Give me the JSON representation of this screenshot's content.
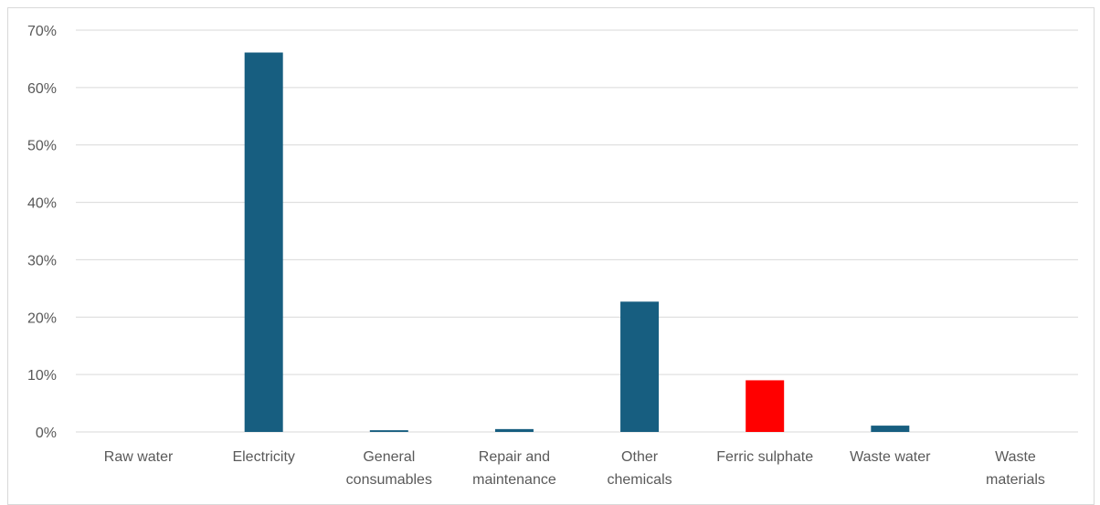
{
  "chart_data": {
    "type": "bar",
    "title": "",
    "xlabel": "",
    "ylabel": "",
    "ylim": [
      0,
      70
    ],
    "y_tick_step": 10,
    "y_tick_suffix": "%",
    "grid": true,
    "legend": "none",
    "categories": [
      [
        "Raw water"
      ],
      [
        "Electricity"
      ],
      [
        "General",
        "consumables"
      ],
      [
        "Repair and",
        "maintenance"
      ],
      [
        "Other",
        "chemicals"
      ],
      [
        "Ferric sulphate"
      ],
      [
        "Waste water"
      ],
      [
        "Waste",
        "materials"
      ]
    ],
    "values": [
      0.0,
      66.1,
      0.3,
      0.5,
      22.7,
      9.0,
      1.1,
      0.0
    ],
    "colors": [
      "#175e80",
      "#175e80",
      "#175e80",
      "#175e80",
      "#175e80",
      "#ff0000",
      "#175e80",
      "#175e80"
    ],
    "gridline_color": "#d9d9d9"
  }
}
